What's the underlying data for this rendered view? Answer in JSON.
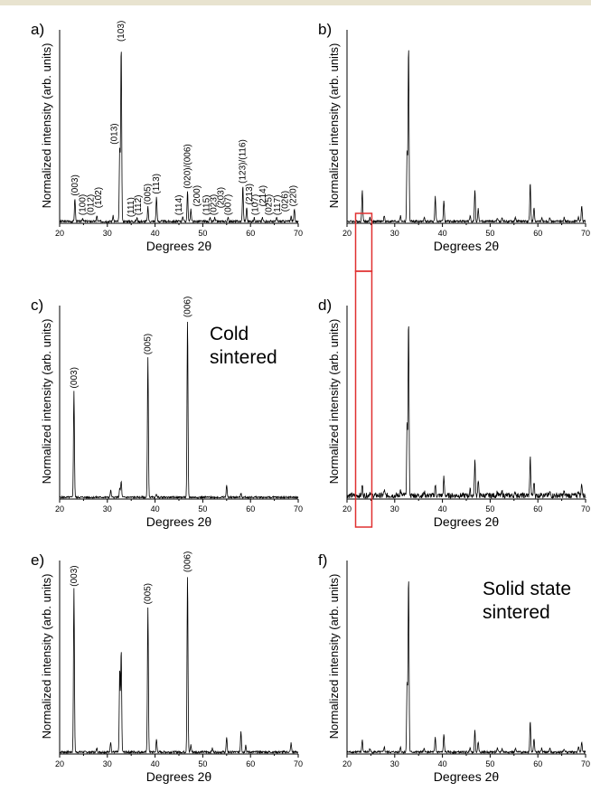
{
  "accent_colors": {
    "top_rule": "#e8e3cf",
    "highlight_box": "#e03030",
    "trace": "#000000"
  },
  "chart_data": [
    {
      "panel": "a)",
      "type": "line",
      "xlabel": "Degrees 2θ",
      "ylabel": "Normalized intensity (arb. units)",
      "xlim": [
        20,
        70
      ],
      "ylim": [
        0,
        1
      ],
      "xticks": [
        "20",
        "30",
        "40",
        "50",
        "60",
        "70"
      ],
      "peaks": [
        {
          "x": 23.2,
          "y": 0.13
        },
        {
          "x": 24.8,
          "y": 0.02
        },
        {
          "x": 27.8,
          "y": 0.03
        },
        {
          "x": 31.2,
          "y": 0.03
        },
        {
          "x": 32.6,
          "y": 0.42
        },
        {
          "x": 32.9,
          "y": 1.0
        },
        {
          "x": 36.2,
          "y": 0.02
        },
        {
          "x": 38.5,
          "y": 0.08
        },
        {
          "x": 40.3,
          "y": 0.14
        },
        {
          "x": 45.8,
          "y": 0.03
        },
        {
          "x": 46.8,
          "y": 0.17
        },
        {
          "x": 47.5,
          "y": 0.07
        },
        {
          "x": 51.5,
          "y": 0.02
        },
        {
          "x": 52.5,
          "y": 0.02
        },
        {
          "x": 55.3,
          "y": 0.02
        },
        {
          "x": 58.4,
          "y": 0.2
        },
        {
          "x": 59.2,
          "y": 0.08
        },
        {
          "x": 60.8,
          "y": 0.02
        },
        {
          "x": 62.5,
          "y": 0.02
        },
        {
          "x": 65.5,
          "y": 0.02
        },
        {
          "x": 68.5,
          "y": 0.03
        },
        {
          "x": 69.2,
          "y": 0.07
        }
      ],
      "annotations": [
        {
          "text": "(003)",
          "x": 23.2,
          "y": 0.14
        },
        {
          "text": "(100)",
          "x": 24.8,
          "y": 0.03
        },
        {
          "text": "(012)",
          "x": 26.5,
          "y": 0.03
        },
        {
          "text": "(102)",
          "x": 28.1,
          "y": 0.07
        },
        {
          "text": "(013)",
          "x": 31.5,
          "y": 0.43
        },
        {
          "text": "(103)",
          "x": 32.9,
          "y": 1.01
        },
        {
          "text": "(111)",
          "x": 35.0,
          "y": 0.02
        },
        {
          "text": "(112)",
          "x": 36.5,
          "y": 0.03
        },
        {
          "text": "(005)",
          "x": 38.5,
          "y": 0.09
        },
        {
          "text": "(113)",
          "x": 40.3,
          "y": 0.15
        },
        {
          "text": "(114)",
          "x": 45.0,
          "y": 0.03
        },
        {
          "text": "(020)/(006)",
          "x": 46.8,
          "y": 0.18
        },
        {
          "text": "(200)",
          "x": 48.8,
          "y": 0.08
        },
        {
          "text": "(115)",
          "x": 50.8,
          "y": 0.03
        },
        {
          "text": "(023)",
          "x": 52.3,
          "y": 0.03
        },
        {
          "text": "(203)",
          "x": 53.8,
          "y": 0.07
        },
        {
          "text": "(007)",
          "x": 55.3,
          "y": 0.03
        },
        {
          "text": "(123)/(116)",
          "x": 58.4,
          "y": 0.21
        },
        {
          "text": "(213)",
          "x": 59.8,
          "y": 0.09
        },
        {
          "text": "(107)",
          "x": 61.0,
          "y": 0.03
        },
        {
          "text": "(214)",
          "x": 62.6,
          "y": 0.08
        },
        {
          "text": "(025)",
          "x": 63.8,
          "y": 0.03
        },
        {
          "text": "(117)",
          "x": 65.6,
          "y": 0.03
        },
        {
          "text": "(026)",
          "x": 67.3,
          "y": 0.05
        },
        {
          "text": "(220)",
          "x": 69.0,
          "y": 0.08
        }
      ],
      "side_label": ""
    },
    {
      "panel": "b)",
      "type": "line",
      "xlabel": "Degrees 2θ",
      "ylabel": "Normalized intensity (arb. units)",
      "xlim": [
        20,
        70
      ],
      "ylim": [
        0,
        1
      ],
      "xticks": [
        "20",
        "30",
        "40",
        "50",
        "60",
        "70"
      ],
      "peaks": [
        {
          "x": 23.2,
          "y": 0.18
        },
        {
          "x": 24.8,
          "y": 0.02
        },
        {
          "x": 27.8,
          "y": 0.03
        },
        {
          "x": 31.2,
          "y": 0.03
        },
        {
          "x": 32.6,
          "y": 0.4
        },
        {
          "x": 32.9,
          "y": 1.0
        },
        {
          "x": 36.2,
          "y": 0.02
        },
        {
          "x": 38.5,
          "y": 0.14
        },
        {
          "x": 40.3,
          "y": 0.12
        },
        {
          "x": 45.8,
          "y": 0.03
        },
        {
          "x": 46.8,
          "y": 0.18
        },
        {
          "x": 47.5,
          "y": 0.07
        },
        {
          "x": 51.5,
          "y": 0.02
        },
        {
          "x": 52.5,
          "y": 0.02
        },
        {
          "x": 55.3,
          "y": 0.02
        },
        {
          "x": 58.4,
          "y": 0.22
        },
        {
          "x": 59.2,
          "y": 0.08
        },
        {
          "x": 60.8,
          "y": 0.02
        },
        {
          "x": 62.5,
          "y": 0.02
        },
        {
          "x": 65.5,
          "y": 0.02
        },
        {
          "x": 68.5,
          "y": 0.03
        },
        {
          "x": 69.2,
          "y": 0.09
        }
      ],
      "annotations": [],
      "side_label": ""
    },
    {
      "panel": "c)",
      "type": "line",
      "xlabel": "Degrees 2θ",
      "ylabel": "Normalized intensity (arb. units)",
      "xlim": [
        20,
        70
      ],
      "ylim": [
        0,
        1
      ],
      "xticks": [
        "20",
        "30",
        "40",
        "50",
        "60",
        "70"
      ],
      "peaks": [
        {
          "x": 23.0,
          "y": 0.6
        },
        {
          "x": 30.7,
          "y": 0.04
        },
        {
          "x": 32.6,
          "y": 0.05
        },
        {
          "x": 32.9,
          "y": 0.09
        },
        {
          "x": 38.5,
          "y": 0.79
        },
        {
          "x": 40.3,
          "y": 0.02
        },
        {
          "x": 46.8,
          "y": 1.0
        },
        {
          "x": 55.0,
          "y": 0.07
        },
        {
          "x": 58.0,
          "y": 0.02
        }
      ],
      "annotations": [
        {
          "text": "(003)",
          "x": 23.0,
          "y": 0.61
        },
        {
          "text": "(005)",
          "x": 38.5,
          "y": 0.8
        },
        {
          "text": "(006)",
          "x": 46.8,
          "y": 1.01
        }
      ],
      "side_label": "Cold sintered"
    },
    {
      "panel": "d)",
      "type": "line",
      "xlabel": "Degrees 2θ",
      "ylabel": "Normalized intensity (arb. units)",
      "xlim": [
        20,
        70
      ],
      "ylim": [
        0,
        1
      ],
      "xticks": [
        "20",
        "30",
        "40",
        "50",
        "60",
        "70"
      ],
      "peaks": [
        {
          "x": 23.2,
          "y": 0.06
        },
        {
          "x": 24.8,
          "y": 0.02
        },
        {
          "x": 27.8,
          "y": 0.03
        },
        {
          "x": 31.2,
          "y": 0.03
        },
        {
          "x": 32.6,
          "y": 0.4
        },
        {
          "x": 32.9,
          "y": 1.0
        },
        {
          "x": 36.2,
          "y": 0.02
        },
        {
          "x": 38.5,
          "y": 0.06
        },
        {
          "x": 40.3,
          "y": 0.1
        },
        {
          "x": 45.8,
          "y": 0.03
        },
        {
          "x": 46.8,
          "y": 0.2
        },
        {
          "x": 47.5,
          "y": 0.08
        },
        {
          "x": 51.5,
          "y": 0.02
        },
        {
          "x": 52.5,
          "y": 0.02
        },
        {
          "x": 55.3,
          "y": 0.02
        },
        {
          "x": 58.4,
          "y": 0.22
        },
        {
          "x": 59.2,
          "y": 0.08
        },
        {
          "x": 60.8,
          "y": 0.02
        },
        {
          "x": 62.5,
          "y": 0.02
        },
        {
          "x": 65.5,
          "y": 0.02
        },
        {
          "x": 68.5,
          "y": 0.03
        },
        {
          "x": 69.2,
          "y": 0.07
        }
      ],
      "annotations": [],
      "side_label": ""
    },
    {
      "panel": "e)",
      "type": "line",
      "xlabel": "Degrees 2θ",
      "ylabel": "Normalized intensity (arb. units)",
      "xlim": [
        20,
        70
      ],
      "ylim": [
        0,
        1
      ],
      "xticks": [
        "20",
        "30",
        "40",
        "50",
        "60",
        "70"
      ],
      "peaks": [
        {
          "x": 23.0,
          "y": 0.92
        },
        {
          "x": 27.8,
          "y": 0.02
        },
        {
          "x": 30.7,
          "y": 0.06
        },
        {
          "x": 32.6,
          "y": 0.47
        },
        {
          "x": 32.9,
          "y": 0.58
        },
        {
          "x": 38.5,
          "y": 0.82
        },
        {
          "x": 40.3,
          "y": 0.07
        },
        {
          "x": 46.8,
          "y": 1.0
        },
        {
          "x": 47.5,
          "y": 0.04
        },
        {
          "x": 52.0,
          "y": 0.02
        },
        {
          "x": 55.0,
          "y": 0.08
        },
        {
          "x": 58.0,
          "y": 0.12
        },
        {
          "x": 59.0,
          "y": 0.04
        },
        {
          "x": 68.5,
          "y": 0.05
        }
      ],
      "annotations": [
        {
          "text": "(003)",
          "x": 23.0,
          "y": 0.93
        },
        {
          "text": "(005)",
          "x": 38.5,
          "y": 0.83
        },
        {
          "text": "(006)",
          "x": 46.8,
          "y": 1.01
        }
      ],
      "side_label": ""
    },
    {
      "panel": "f)",
      "type": "line",
      "xlabel": "Degrees 2θ",
      "ylabel": "Normalized intensity (arb. units)",
      "xlim": [
        20,
        70
      ],
      "ylim": [
        0,
        1
      ],
      "xticks": [
        "20",
        "30",
        "40",
        "50",
        "60",
        "70"
      ],
      "peaks": [
        {
          "x": 23.2,
          "y": 0.07
        },
        {
          "x": 24.8,
          "y": 0.02
        },
        {
          "x": 27.8,
          "y": 0.03
        },
        {
          "x": 31.2,
          "y": 0.03
        },
        {
          "x": 32.6,
          "y": 0.4
        },
        {
          "x": 32.9,
          "y": 1.0
        },
        {
          "x": 36.2,
          "y": 0.02
        },
        {
          "x": 38.5,
          "y": 0.08
        },
        {
          "x": 40.3,
          "y": 0.1
        },
        {
          "x": 45.8,
          "y": 0.03
        },
        {
          "x": 46.8,
          "y": 0.12
        },
        {
          "x": 47.5,
          "y": 0.06
        },
        {
          "x": 51.5,
          "y": 0.02
        },
        {
          "x": 52.5,
          "y": 0.02
        },
        {
          "x": 55.3,
          "y": 0.02
        },
        {
          "x": 58.4,
          "y": 0.18
        },
        {
          "x": 59.2,
          "y": 0.08
        },
        {
          "x": 60.8,
          "y": 0.02
        },
        {
          "x": 62.5,
          "y": 0.02
        },
        {
          "x": 65.5,
          "y": 0.02
        },
        {
          "x": 68.5,
          "y": 0.03
        },
        {
          "x": 69.2,
          "y": 0.06
        }
      ],
      "annotations": [],
      "side_label": "Solid state sintered"
    }
  ]
}
